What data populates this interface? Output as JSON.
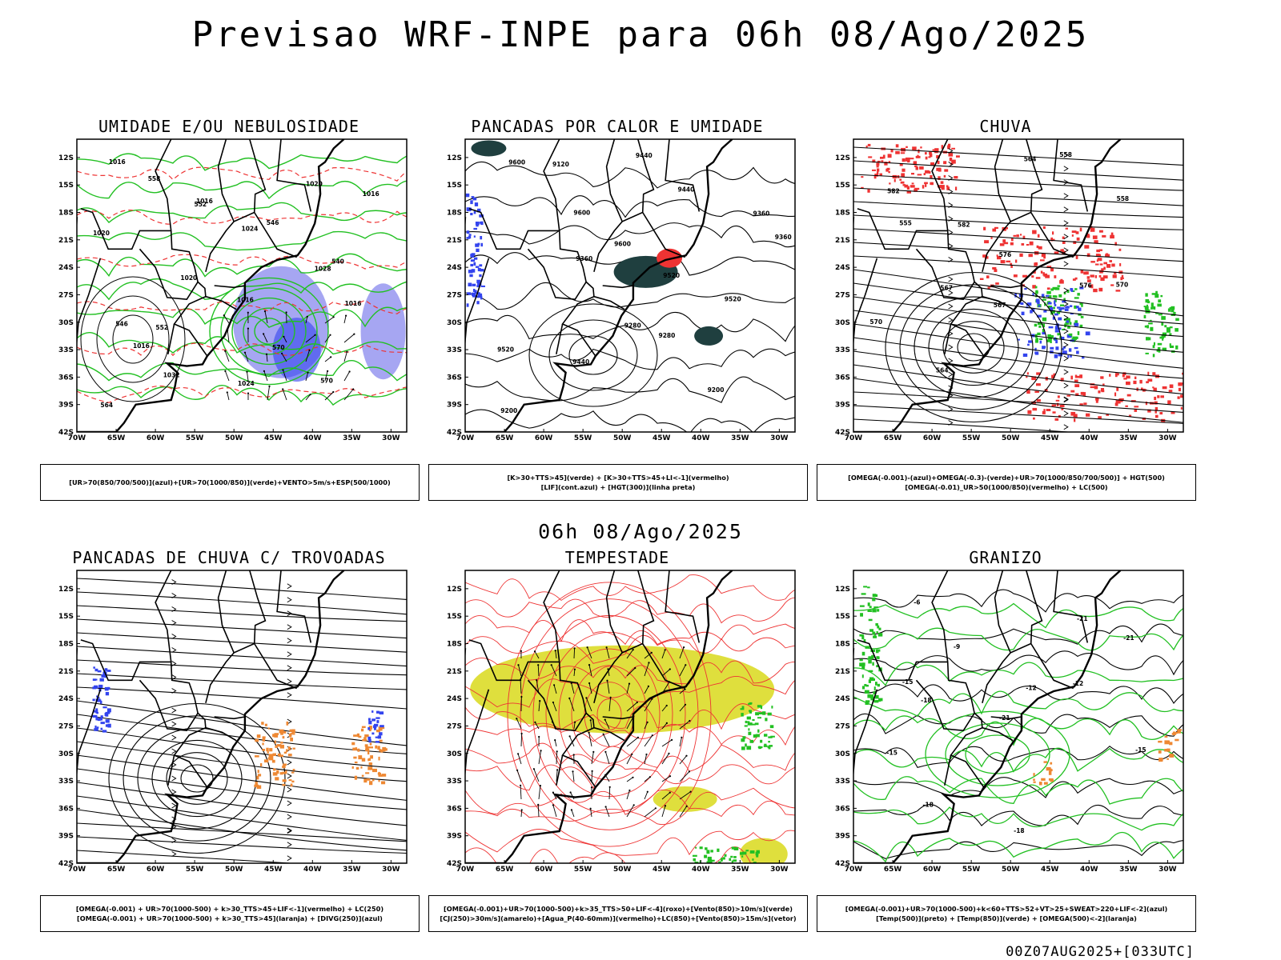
{
  "title": "Previsao WRF-INPE  para 06h 08/Ago/2025",
  "subtitle_date": "06h 08/Ago/2025",
  "footer": "00Z07AUG2025+[033UTC]",
  "axes": {
    "lat_labels": [
      "12S",
      "15S",
      "18S",
      "21S",
      "24S",
      "27S",
      "30S",
      "33S",
      "36S",
      "39S",
      "42S"
    ],
    "lon_labels": [
      "70W",
      "65W",
      "60W",
      "55W",
      "50W",
      "45W",
      "40W",
      "35W",
      "30W"
    ]
  },
  "colors": {
    "green": "#22c022",
    "red": "#ee3333",
    "blue": "#3344ee",
    "orange": "#ee8833",
    "yellow": "#dddd33",
    "darkteal": "#1f3f3f",
    "violet": "#8888ee"
  },
  "panels": [
    {
      "title": "UMIDADE E/OU NEBULOSIDADE",
      "legend": [
        "[UR>70(850/700/500)](azul)+[UR>70(1000/850)](verde)+VENTO>5m/s+ESP(500/1000)"
      ],
      "labels": [
        "1016",
        "1016",
        "1024",
        "1028",
        "1016",
        "1016",
        "1032",
        "1024",
        "1020",
        "1016",
        "1020",
        "1020",
        "1016",
        "570",
        "570",
        "564",
        "558",
        "552",
        "546",
        "540",
        "546",
        "552"
      ]
    },
    {
      "title": "PANCADAS POR CALOR E UMIDADE",
      "legend": [
        "[K>30+TTS>45](verde) + [K>30+TTS>45+LI<-1](vermelho)",
        "[LIF](cont.azul) + [HGT(300)](linha preta)"
      ],
      "labels": [
        "9600",
        "9600",
        "9600",
        "9520",
        "9520",
        "9520",
        "9440",
        "9440",
        "9440",
        "9360",
        "9360",
        "9360",
        "9280",
        "9280",
        "9200",
        "9200",
        "9120"
      ]
    },
    {
      "title": "CHUVA",
      "legend": [
        "[OMEGA(-0.001)-(azul)+OMEGA(-0.3)-(verde)+UR>70(1000/850/700/500)] + HGT(500)",
        "[OMEGA(-0.01)_UR>50(1000/850)(vermelho) + LC(500)"
      ],
      "labels": [
        "582",
        "582",
        "576",
        "576",
        "570",
        "570",
        "564",
        "564",
        "558",
        "558",
        "555",
        "567",
        "567"
      ]
    },
    {
      "title": "PANCADAS DE CHUVA C/ TROVOADAS",
      "legend": [
        "[OMEGA(-0.001) + UR>70(1000-500) + k>30_TTS>45+LIF<-1](vermelho) + LC(250)",
        "[OMEGA(-0.001) + UR>70(1000-500) + k>30_TTS>45](laranja) + [DIVG(250)](azul)"
      ],
      "labels": []
    },
    {
      "title": "TEMPESTADE",
      "legend": [
        "[OMEGA(-0.001)+UR>70(1000-500)+k>35_TTS>50+LIF<-4](roxo)+[Vento(850)>10m/s](verde)",
        "[CJ(250)>30m/s](amarelo)+[Agua_P(40-60mm)](vermelho)+LC(850)+[Vento(850)>15m/s](vetor)"
      ],
      "labels": []
    },
    {
      "title": "GRANIZO",
      "legend": [
        "[OMEGA(-0.001)+UR>70(1000-500)+k<60+TTS>52+VT>25+SWEAT>220+LIF<-2](azul)",
        "[Temp(500)](preto) + [Temp(850)](verde) + [OMEGA(500)<-2](laranja)"
      ],
      "labels": [
        "-6",
        "-9",
        "-12",
        "-12",
        "-15",
        "-15",
        "-18",
        "-18",
        "-21",
        "-21",
        "-15",
        "-18",
        "-21"
      ]
    }
  ]
}
